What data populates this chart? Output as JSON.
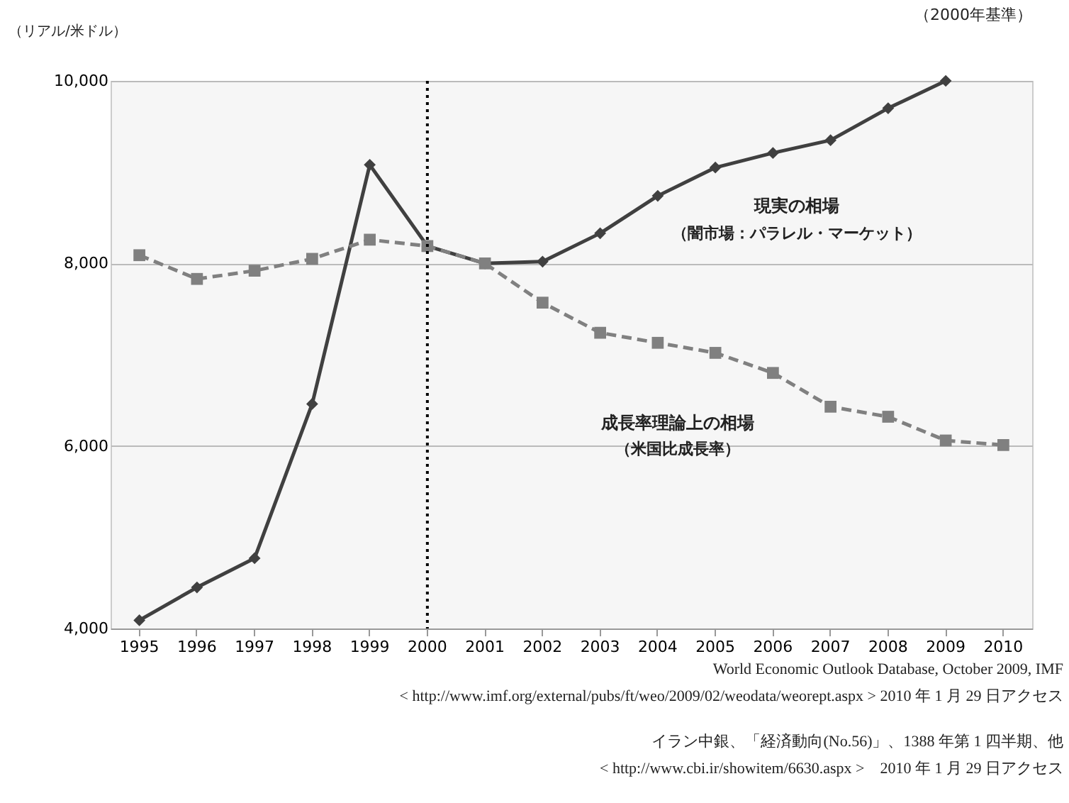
{
  "chart_data": {
    "type": "line",
    "subtitle": "（2000年基準）",
    "ylabel": "（リアル/米ドル）",
    "categories": [
      "1995",
      "1996",
      "1997",
      "1998",
      "1999",
      "2000",
      "2001",
      "2002",
      "2003",
      "2004",
      "2005",
      "2006",
      "2007",
      "2008",
      "2009",
      "2010"
    ],
    "series": [
      {
        "color": "#404040",
        "marker": "diamond",
        "line_style": "solid",
        "values": [
          4090,
          4450,
          4770,
          6460,
          9080,
          8190,
          8000,
          8020,
          8330,
          8740,
          9050,
          9210,
          9350,
          9700,
          10000,
          null
        ]
      },
      {
        "color": "#808080",
        "marker": "square",
        "line_style": "dashed",
        "values": [
          8090,
          7830,
          7920,
          8050,
          8260,
          8190,
          8000,
          7570,
          7240,
          7130,
          7020,
          6800,
          6430,
          6320,
          6060,
          6010
        ]
      }
    ],
    "ylim": [
      4000,
      10000
    ],
    "yticks": [
      {
        "value": 4000,
        "label": "4,000"
      },
      {
        "value": 6000,
        "label": "6,000"
      },
      {
        "value": 8000,
        "label": "8,000"
      },
      {
        "value": 10000,
        "label": "10,000"
      }
    ],
    "grid": "y",
    "ref_lines": [
      {
        "axis": "x",
        "value": "2000",
        "color": "#000000",
        "line_style": "dotted"
      }
    ],
    "annotations": [
      "現実の相場",
      "（闇市場：パラレル・マーケット）",
      "成長率理論上の相場",
      "（米国比成長率）",
      "World Economic Outlook Database, October 2009, IMF",
      "< http://www.imf.org/external/pubs/ft/weo/2009/02/weodata/weorept.aspx > 2010 年 1 月 29 日アクセス",
      "イラン中銀、「経済動向(No.56)」、1388 年第 1 四半期、他",
      "< http://www.cbi.ir/showitem/6630.aspx >　2010 年 1 月 29 日アクセス"
    ]
  }
}
